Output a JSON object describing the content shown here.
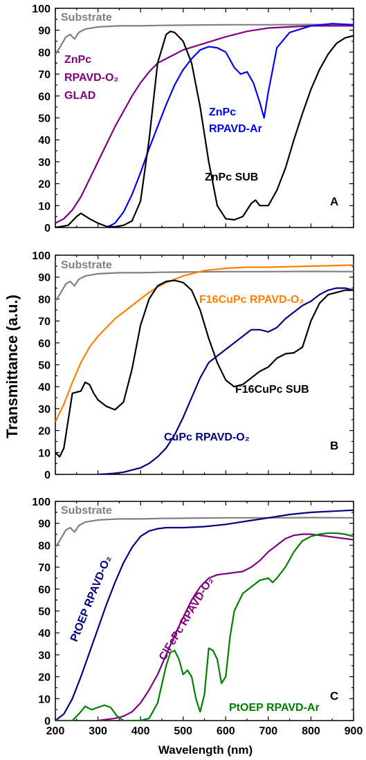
{
  "figure": {
    "ylabel": "Transmittance (a.u.)",
    "xlabel": "Wavelength (nm)"
  },
  "chart_data": [
    {
      "type": "line",
      "panel": "A",
      "xlim": [
        200,
        900
      ],
      "ylim": [
        0,
        100
      ],
      "x_ticks": [],
      "y_ticks": [
        0,
        10,
        20,
        30,
        40,
        50,
        60,
        70,
        80,
        90,
        100
      ],
      "grid": false,
      "series": [
        {
          "name": "Substrate",
          "label": "Substrate",
          "label_lines": [
            "Substrate"
          ],
          "color": "#808080",
          "x": [
            200,
            210,
            225,
            235,
            245,
            255,
            270,
            300,
            350,
            400,
            450,
            500,
            600,
            700,
            800,
            900
          ],
          "y": [
            79,
            82,
            87,
            88,
            86,
            89,
            90.5,
            91.5,
            92,
            92,
            92.2,
            92.3,
            92.5,
            92.5,
            92.6,
            92.5
          ]
        },
        {
          "name": "ZnPc RPAVD-O2 GLAD",
          "label": "ZnPc RPAVD-O₂ GLAD",
          "label_lines": [
            "ZnPc",
            "RPAVD-O₂",
            "GLAD"
          ],
          "color": "#800080",
          "x": [
            200,
            220,
            240,
            260,
            280,
            300,
            320,
            340,
            360,
            380,
            400,
            420,
            440,
            460,
            480,
            500,
            550,
            600,
            650,
            700,
            750,
            800,
            900
          ],
          "y": [
            2,
            4,
            8,
            14,
            22,
            30,
            38,
            46,
            53,
            60,
            66,
            71,
            75,
            77,
            79,
            81,
            84,
            87,
            89.5,
            91,
            91.5,
            92,
            92
          ]
        },
        {
          "name": "ZnPc RPAVD-Ar",
          "label": "ZnPc RPAVD-Ar",
          "label_lines": [
            "ZnPc",
            "RPAVD-Ar"
          ],
          "color": "#0000ff",
          "x": [
            320,
            340,
            360,
            380,
            400,
            420,
            440,
            460,
            480,
            500,
            520,
            540,
            560,
            580,
            600,
            620,
            635,
            650,
            665,
            680,
            690,
            700,
            720,
            750,
            800,
            850,
            900
          ],
          "y": [
            0,
            2,
            7,
            15,
            25,
            36,
            46,
            56,
            65,
            72,
            77,
            81,
            82.5,
            82,
            80,
            73,
            70,
            71,
            66,
            57,
            50,
            62,
            82,
            89,
            92,
            93,
            92.5
          ]
        },
        {
          "name": "ZnPc SUB",
          "label": "ZnPc SUB",
          "label_lines": [
            "ZnPc SUB"
          ],
          "color": "#000000",
          "x": [
            200,
            230,
            250,
            260,
            280,
            300,
            320,
            340,
            360,
            380,
            400,
            420,
            440,
            460,
            470,
            480,
            500,
            520,
            540,
            560,
            580,
            600,
            620,
            640,
            660,
            670,
            680,
            700,
            720,
            740,
            760,
            780,
            800,
            820,
            840,
            860,
            880,
            900
          ],
          "y": [
            0,
            1,
            5,
            6.5,
            4,
            2,
            0.5,
            0.3,
            1,
            3,
            12,
            40,
            75,
            88,
            89.5,
            89,
            85,
            75,
            55,
            30,
            10,
            4,
            3.5,
            5,
            11,
            12.5,
            10,
            10,
            17,
            27,
            40,
            52,
            63,
            72,
            79,
            84,
            86.5,
            87.5
          ]
        }
      ]
    },
    {
      "type": "line",
      "panel": "B",
      "xlim": [
        200,
        900
      ],
      "ylim": [
        0,
        100
      ],
      "x_ticks": [],
      "y_ticks": [
        0,
        10,
        20,
        30,
        40,
        50,
        60,
        70,
        80,
        90,
        100
      ],
      "grid": false,
      "series": [
        {
          "name": "Substrate",
          "label": "Substrate",
          "label_lines": [
            "Substrate"
          ],
          "color": "#808080",
          "x": [
            200,
            210,
            225,
            235,
            245,
            255,
            270,
            300,
            350,
            400,
            450,
            500,
            600,
            700,
            800,
            900
          ],
          "y": [
            79,
            82,
            87,
            88,
            86,
            89,
            90.5,
            91.5,
            92,
            92,
            92.2,
            92.3,
            92.5,
            92.5,
            92.6,
            92.5
          ]
        },
        {
          "name": "F16CuPc RPAVD-O2",
          "label": "F16CuPc RPAVD-O₂",
          "label_lines": [
            "F16CuPc RPAVD-O₂"
          ],
          "color": "#ff8000",
          "x": [
            200,
            220,
            240,
            260,
            280,
            300,
            320,
            340,
            360,
            380,
            400,
            420,
            440,
            460,
            480,
            500,
            550,
            600,
            650,
            700,
            800,
            900
          ],
          "y": [
            24,
            32,
            42,
            51,
            58,
            63,
            67,
            71,
            74,
            77,
            80,
            83,
            85.5,
            87.5,
            89,
            90.5,
            93,
            94,
            94.5,
            94.5,
            95,
            95.5
          ]
        },
        {
          "name": "F16CuPc SUB",
          "label": "F16CuPc SUB",
          "label_lines": [
            "F16CuPc SUB"
          ],
          "color": "#000000",
          "x": [
            200,
            210,
            220,
            240,
            260,
            270,
            280,
            290,
            300,
            320,
            340,
            360,
            380,
            400,
            420,
            440,
            460,
            480,
            500,
            520,
            540,
            560,
            580,
            600,
            620,
            640,
            660,
            680,
            700,
            720,
            740,
            760,
            780,
            800,
            820,
            840,
            860,
            880,
            900
          ],
          "y": [
            10,
            8,
            12,
            37,
            38,
            42,
            41,
            37,
            34,
            31,
            29.5,
            33,
            48,
            68,
            80,
            86,
            88,
            88.5,
            87.5,
            84,
            75,
            62,
            51,
            43,
            40,
            41,
            44,
            47,
            49,
            53,
            55,
            55.5,
            58,
            70,
            78,
            82,
            83,
            84,
            84
          ]
        },
        {
          "name": "CuPc RPAVD-O2",
          "label": "CuPc RPAVD-O₂",
          "label_lines": [
            "CuPc RPAVD-O₂"
          ],
          "color": "#000080",
          "x": [
            300,
            320,
            340,
            360,
            380,
            400,
            420,
            440,
            460,
            480,
            500,
            520,
            540,
            560,
            580,
            600,
            620,
            640,
            660,
            680,
            700,
            720,
            740,
            760,
            780,
            800,
            820,
            840,
            860,
            880,
            900
          ],
          "y": [
            0,
            0.2,
            0.5,
            1,
            2,
            3,
            5,
            8,
            12,
            18,
            26,
            35,
            44,
            51,
            54,
            57,
            60,
            63,
            66,
            66,
            65,
            67,
            71,
            74,
            77,
            79,
            82,
            84,
            85,
            85,
            84
          ]
        }
      ]
    },
    {
      "type": "line",
      "panel": "C",
      "xlim": [
        200,
        900
      ],
      "ylim": [
        0,
        100
      ],
      "x_ticks": [
        200,
        300,
        400,
        500,
        600,
        700,
        800,
        900
      ],
      "y_ticks": [
        0,
        10,
        20,
        30,
        40,
        50,
        60,
        70,
        80,
        90,
        100
      ],
      "grid": false,
      "series": [
        {
          "name": "Substrate",
          "label": "Substrate",
          "label_lines": [
            "Substrate"
          ],
          "color": "#808080",
          "x": [
            200,
            210,
            225,
            235,
            245,
            255,
            270,
            300,
            350,
            400,
            450,
            500,
            600,
            700,
            800,
            900
          ],
          "y": [
            79,
            82,
            87,
            88,
            86,
            89,
            90.5,
            91.5,
            92,
            92,
            92.2,
            92.3,
            92.5,
            92.5,
            92.6,
            92.5
          ]
        },
        {
          "name": "PtOEP RPAVD-O2",
          "label": "PtOEP RPAVD-O₂",
          "label_lines": [
            "PtOEP RPAVD-O₂"
          ],
          "color": "#000080",
          "x": [
            200,
            220,
            240,
            260,
            280,
            300,
            320,
            340,
            360,
            380,
            400,
            420,
            440,
            460,
            480,
            500,
            550,
            600,
            650,
            700,
            750,
            800,
            850,
            900
          ],
          "y": [
            0,
            3,
            10,
            20,
            31,
            42,
            53,
            63,
            72,
            79,
            84,
            86.5,
            87.5,
            88,
            88,
            88,
            88.5,
            89.5,
            91,
            92.5,
            94,
            95,
            95.5,
            96
          ]
        },
        {
          "name": "ClFePc RPAVD-O2",
          "label": "ClFePc RPAVD-O₂",
          "label_lines": [
            "ClFePc RPAVD-O₂"
          ],
          "color": "#800080",
          "x": [
            300,
            320,
            340,
            360,
            380,
            400,
            420,
            440,
            460,
            480,
            500,
            520,
            540,
            560,
            580,
            600,
            620,
            640,
            660,
            680,
            700,
            720,
            740,
            760,
            780,
            800,
            820,
            840,
            860,
            880,
            900
          ],
          "y": [
            0,
            0.5,
            1,
            2,
            4,
            8,
            14,
            21,
            30,
            39,
            47,
            55,
            61,
            65,
            66.5,
            67,
            67.5,
            68,
            70,
            73,
            77,
            80,
            83,
            84.5,
            85,
            85,
            84.5,
            84,
            83.5,
            83,
            82.5
          ]
        },
        {
          "name": "PtOEP RPAVD-Ar",
          "label": "PtOEP RPAVD-Ar",
          "label_lines": [
            "PtOEP RPAVD-Ar"
          ],
          "color": "#008000",
          "x": [
            200,
            240,
            255,
            270,
            285,
            300,
            315,
            330,
            345,
            360,
            380,
            400,
            420,
            440,
            460,
            470,
            480,
            490,
            500,
            510,
            520,
            530,
            540,
            550,
            560,
            570,
            580,
            590,
            600,
            610,
            620,
            640,
            660,
            680,
            700,
            710,
            720,
            740,
            760,
            780,
            800,
            820,
            840,
            860,
            880,
            900
          ],
          "y": [
            0,
            0,
            3,
            6.5,
            5,
            6,
            7,
            6,
            2,
            0,
            0,
            0,
            1,
            8,
            25,
            31,
            32,
            28,
            21,
            23,
            20,
            10,
            4,
            12,
            33,
            32,
            28,
            17,
            20,
            38,
            50,
            58,
            61,
            64,
            65,
            63,
            65,
            70,
            77,
            82,
            84,
            85,
            85.5,
            85.5,
            85,
            84
          ]
        }
      ]
    }
  ]
}
